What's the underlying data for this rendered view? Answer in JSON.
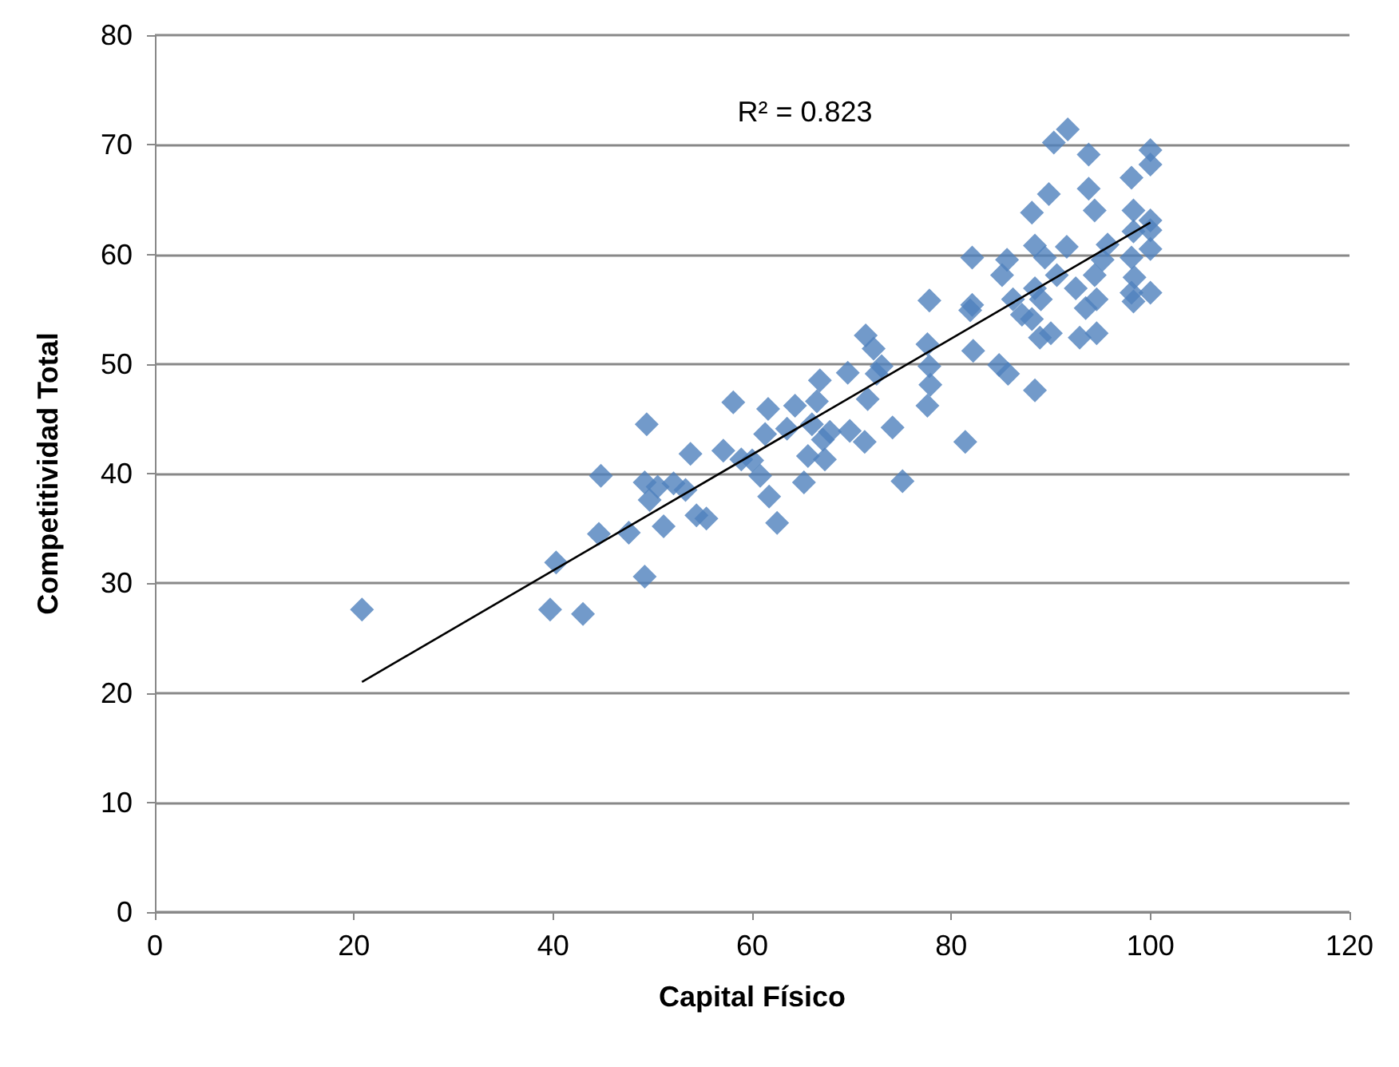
{
  "chart_data": {
    "type": "scatter",
    "xlabel": "Capital Físico",
    "ylabel": "Competitividad Total",
    "xlim": [
      0,
      120
    ],
    "xticks": [
      0,
      20,
      40,
      60,
      80,
      100,
      120
    ],
    "ylim": [
      0,
      80
    ],
    "yticks": [
      0,
      10,
      20,
      30,
      40,
      50,
      60,
      70,
      80
    ],
    "grid": "y",
    "marker": "diamond",
    "annotations": [
      "R² = 0.823"
    ],
    "series": [
      {
        "color": "#4f81bd",
        "x": [
          20.8,
          39.7,
          43.0,
          40.3,
          44.6,
          44.8,
          49.4,
          47.6,
          49.2,
          49.2,
          49.7,
          50.5,
          51.1,
          52.1,
          53.3,
          53.8,
          54.4,
          55.4,
          57.1,
          58.1,
          58.9,
          60.0,
          60.8,
          61.3,
          61.6,
          61.7,
          62.5,
          63.5,
          64.3,
          65.2,
          65.6,
          66.0,
          66.5,
          66.8,
          67.1,
          67.8,
          67.3,
          69.6,
          69.8,
          71.3,
          71.4,
          71.6,
          72.2,
          72.5,
          73.0,
          74.1,
          75.1,
          77.8,
          77.6,
          77.8,
          77.9,
          77.6,
          81.4,
          82.1,
          81.9,
          82.2,
          82.1,
          84.8,
          85.7,
          85.6,
          85.1,
          86.2,
          87.1,
          88.1,
          88.4,
          88.4,
          88.1,
          88.4,
          88.9,
          89.0,
          89.4,
          89.8,
          90.3,
          90.0,
          90.6,
          91.6,
          91.7,
          92.5,
          92.9,
          93.5,
          93.8,
          93.8,
          94.4,
          94.4,
          94.6,
          95.2,
          98.1,
          98.3,
          98.3,
          98.1,
          98.1,
          98.3,
          100,
          100,
          100,
          100,
          100,
          100,
          98.4,
          95.7,
          94.6
        ],
        "values": [
          27.6,
          27.6,
          27.2,
          31.9,
          34.5,
          39.8,
          44.5,
          34.6,
          30.6,
          39.2,
          37.6,
          38.8,
          35.2,
          39.1,
          38.5,
          41.8,
          36.2,
          35.9,
          42.1,
          46.5,
          41.3,
          41.2,
          39.8,
          43.6,
          45.9,
          37.9,
          35.5,
          44.1,
          46.2,
          39.2,
          41.6,
          44.5,
          46.6,
          48.5,
          43.1,
          43.8,
          41.3,
          49.2,
          43.9,
          42.9,
          52.6,
          46.8,
          51.4,
          49.1,
          49.8,
          44.2,
          39.3,
          55.8,
          51.8,
          49.8,
          48.1,
          46.2,
          42.9,
          59.7,
          54.9,
          51.2,
          55.4,
          49.9,
          49.1,
          59.5,
          58.1,
          55.9,
          54.5,
          63.8,
          60.8,
          56.9,
          54.1,
          47.6,
          52.4,
          55.9,
          59.7,
          65.5,
          70.2,
          52.8,
          58.1,
          60.7,
          71.4,
          56.9,
          52.4,
          55.1,
          69.1,
          66.0,
          64.0,
          58.1,
          52.8,
          59.5,
          67.0,
          64.0,
          62.1,
          59.7,
          56.5,
          55.7,
          69.5,
          68.2,
          62.2,
          60.5,
          56.5,
          63.1,
          57.9,
          60.9,
          55.9
        ]
      },
      {
        "type": "line",
        "color": "#000000",
        "marker": "none",
        "line_style": "solid",
        "x": [
          20.8,
          100
        ],
        "values": [
          21.0,
          62.9
        ]
      }
    ]
  }
}
